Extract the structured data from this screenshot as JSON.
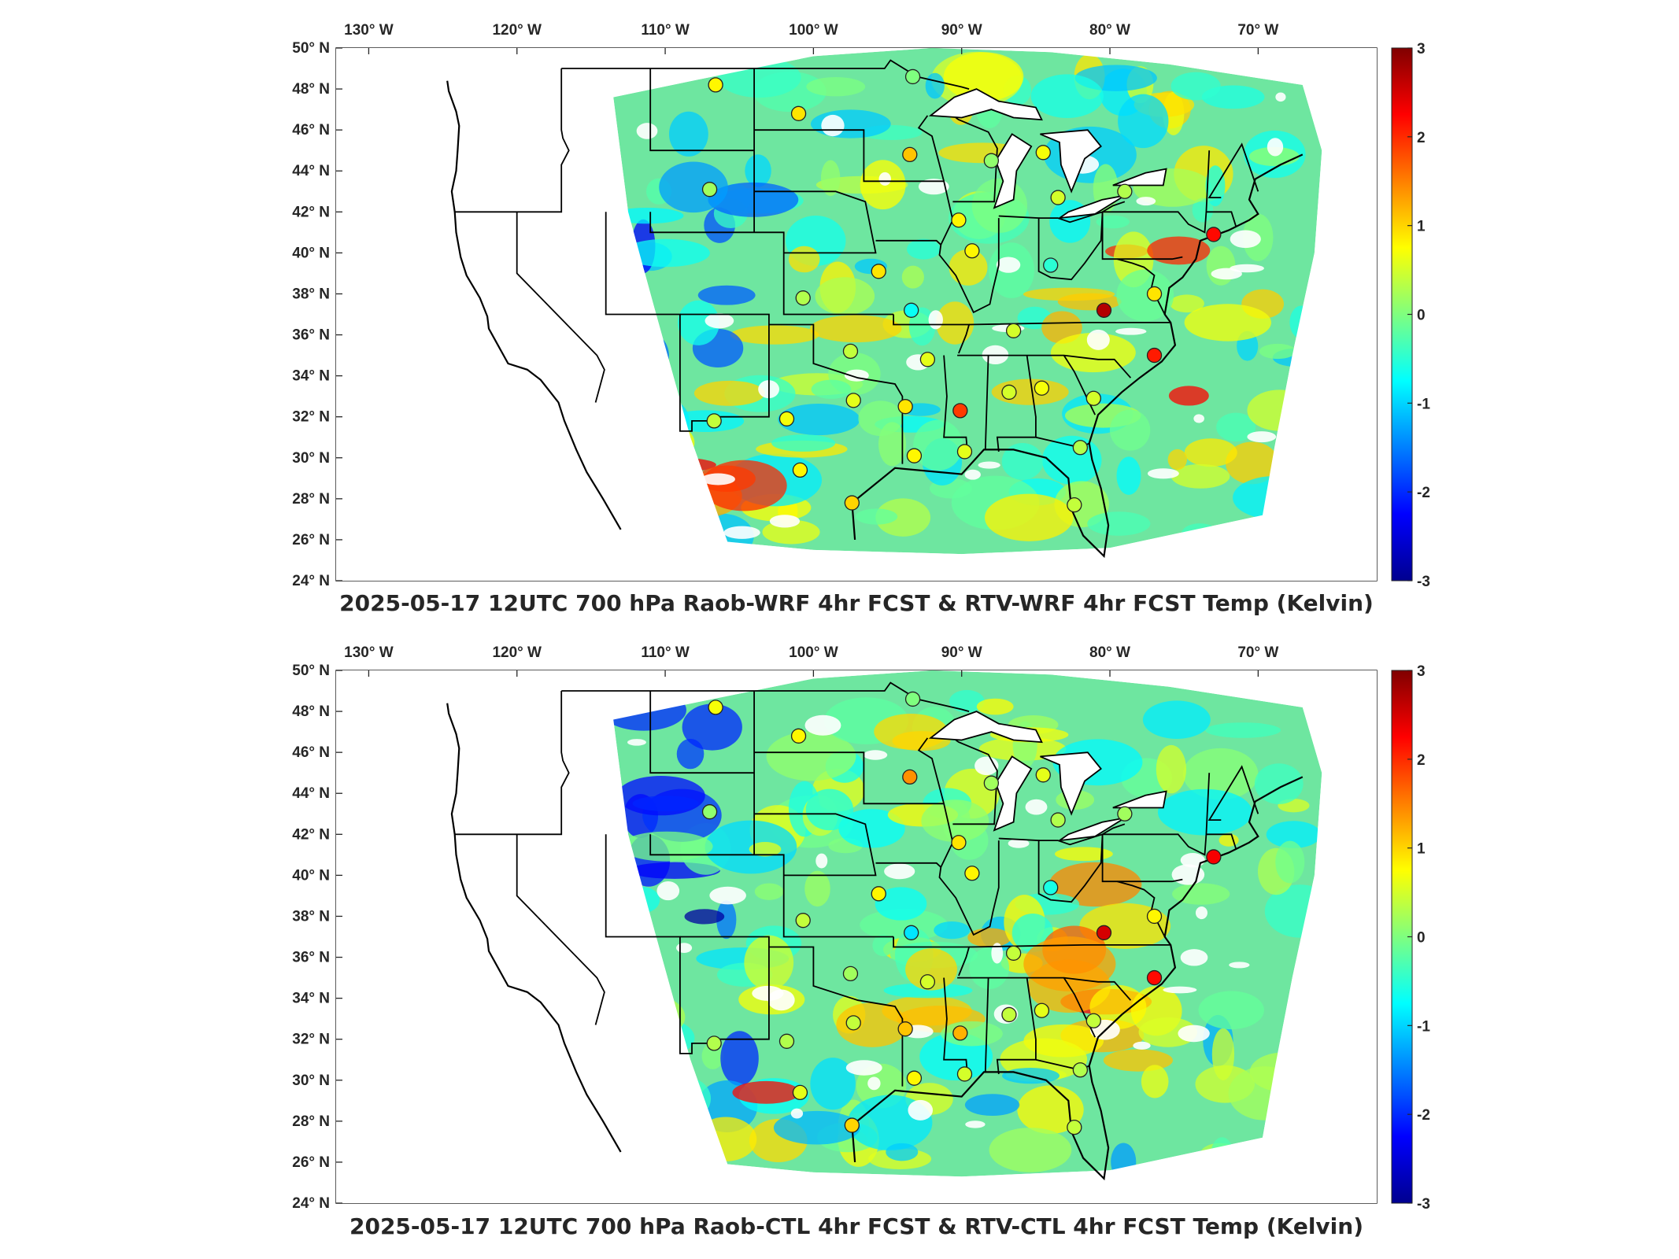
{
  "panels": [
    {
      "id": "top",
      "title": "2025-05-17 12UTC 700 hPa Raob-WRF 4hr FCST & RTV-WRF 4hr FCST Temp (Kelvin)"
    },
    {
      "id": "bottom",
      "title": "2025-05-17 12UTC 700 hPa Raob-CTL 4hr FCST & RTV-CTL 4hr FCST Temp (Kelvin)"
    }
  ],
  "lon_ticks": [
    {
      "value": -130,
      "label": "130° W"
    },
    {
      "value": -120,
      "label": "120° W"
    },
    {
      "value": -110,
      "label": "110° W"
    },
    {
      "value": -100,
      "label": "100° W"
    },
    {
      "value": -90,
      "label": "90° W"
    },
    {
      "value": -80,
      "label": "80° W"
    },
    {
      "value": -70,
      "label": "70° W"
    }
  ],
  "lat_ticks": [
    {
      "value": 50,
      "label": "50° N"
    },
    {
      "value": 48,
      "label": "48° N"
    },
    {
      "value": 46,
      "label": "46° N"
    },
    {
      "value": 44,
      "label": "44° N"
    },
    {
      "value": 42,
      "label": "42° N"
    },
    {
      "value": 40,
      "label": "40° N"
    },
    {
      "value": 38,
      "label": "38° N"
    },
    {
      "value": 36,
      "label": "36° N"
    },
    {
      "value": 34,
      "label": "34° N"
    },
    {
      "value": 32,
      "label": "32° N"
    },
    {
      "value": 30,
      "label": "30° N"
    },
    {
      "value": 28,
      "label": "28° N"
    },
    {
      "value": 26,
      "label": "26° N"
    },
    {
      "value": 24,
      "label": "24° N"
    }
  ],
  "colorbar": {
    "range": [
      -3,
      3
    ],
    "ticks": [
      "3",
      "2",
      "1",
      "0",
      "-1",
      "-2",
      "-3"
    ],
    "colormap": "jet"
  },
  "stations": [
    {
      "lon": -106.6,
      "lat": 48.2,
      "top": 0.8,
      "bottom": 0.7
    },
    {
      "lon": -101.0,
      "lat": 46.8,
      "top": 0.9,
      "bottom": 0.8
    },
    {
      "lon": -93.3,
      "lat": 48.6,
      "top": 0.0,
      "bottom": 0.0
    },
    {
      "lon": -93.5,
      "lat": 44.8,
      "top": 1.1,
      "bottom": 1.4
    },
    {
      "lon": -88.0,
      "lat": 44.5,
      "top": 0.1,
      "bottom": 0.2
    },
    {
      "lon": -84.5,
      "lat": 44.9,
      "top": 0.7,
      "bottom": 0.6
    },
    {
      "lon": -83.5,
      "lat": 42.7,
      "top": 0.5,
      "bottom": 0.3
    },
    {
      "lon": -79.0,
      "lat": 43.0,
      "top": 0.3,
      "bottom": 0.2
    },
    {
      "lon": -107.0,
      "lat": 43.1,
      "top": 0.2,
      "bottom": 0.1
    },
    {
      "lon": -90.2,
      "lat": 41.6,
      "top": 0.8,
      "bottom": 0.9
    },
    {
      "lon": -89.3,
      "lat": 40.1,
      "top": 0.8,
      "bottom": 0.8
    },
    {
      "lon": -84.0,
      "lat": 39.4,
      "top": -0.5,
      "bottom": -0.6
    },
    {
      "lon": -95.6,
      "lat": 39.1,
      "top": 0.9,
      "bottom": 0.8
    },
    {
      "lon": -100.7,
      "lat": 37.8,
      "top": 0.3,
      "bottom": 0.4
    },
    {
      "lon": -93.4,
      "lat": 37.2,
      "top": -0.7,
      "bottom": -0.9
    },
    {
      "lon": -80.4,
      "lat": 37.2,
      "top": 2.7,
      "bottom": 2.5
    },
    {
      "lon": -86.5,
      "lat": 36.2,
      "top": 0.5,
      "bottom": 0.4
    },
    {
      "lon": -97.5,
      "lat": 35.2,
      "top": 0.4,
      "bottom": 0.2
    },
    {
      "lon": -92.3,
      "lat": 34.8,
      "top": 0.6,
      "bottom": 0.5
    },
    {
      "lon": -86.8,
      "lat": 33.2,
      "top": 0.5,
      "bottom": 0.4
    },
    {
      "lon": -84.6,
      "lat": 33.4,
      "top": 0.7,
      "bottom": 0.6
    },
    {
      "lon": -81.1,
      "lat": 32.9,
      "top": 0.5,
      "bottom": 0.4
    },
    {
      "lon": -97.3,
      "lat": 32.8,
      "top": 0.6,
      "bottom": 0.4
    },
    {
      "lon": -93.8,
      "lat": 32.5,
      "top": 0.9,
      "bottom": 1.1
    },
    {
      "lon": -90.1,
      "lat": 32.3,
      "top": 1.9,
      "bottom": 1.2
    },
    {
      "lon": -101.8,
      "lat": 31.9,
      "top": 0.7,
      "bottom": 0.3
    },
    {
      "lon": -106.7,
      "lat": 31.8,
      "top": 0.4,
      "bottom": 0.3
    },
    {
      "lon": -93.2,
      "lat": 30.1,
      "top": 0.8,
      "bottom": 0.8
    },
    {
      "lon": -89.8,
      "lat": 30.3,
      "top": 0.6,
      "bottom": 0.5
    },
    {
      "lon": -82.0,
      "lat": 30.5,
      "top": 0.3,
      "bottom": 0.3
    },
    {
      "lon": -100.9,
      "lat": 29.4,
      "top": 0.8,
      "bottom": 0.6
    },
    {
      "lon": -97.4,
      "lat": 27.8,
      "top": 1.0,
      "bottom": 1.0
    },
    {
      "lon": -82.4,
      "lat": 27.7,
      "top": 0.4,
      "bottom": 0.4
    },
    {
      "lon": -77.0,
      "lat": 38.0,
      "top": 0.9,
      "bottom": 0.8
    },
    {
      "lon": -77.0,
      "lat": 35.0,
      "top": 2.1,
      "bottom": 2.2
    },
    {
      "lon": -73.0,
      "lat": 40.9,
      "top": 2.2,
      "bottom": 2.3
    }
  ]
}
